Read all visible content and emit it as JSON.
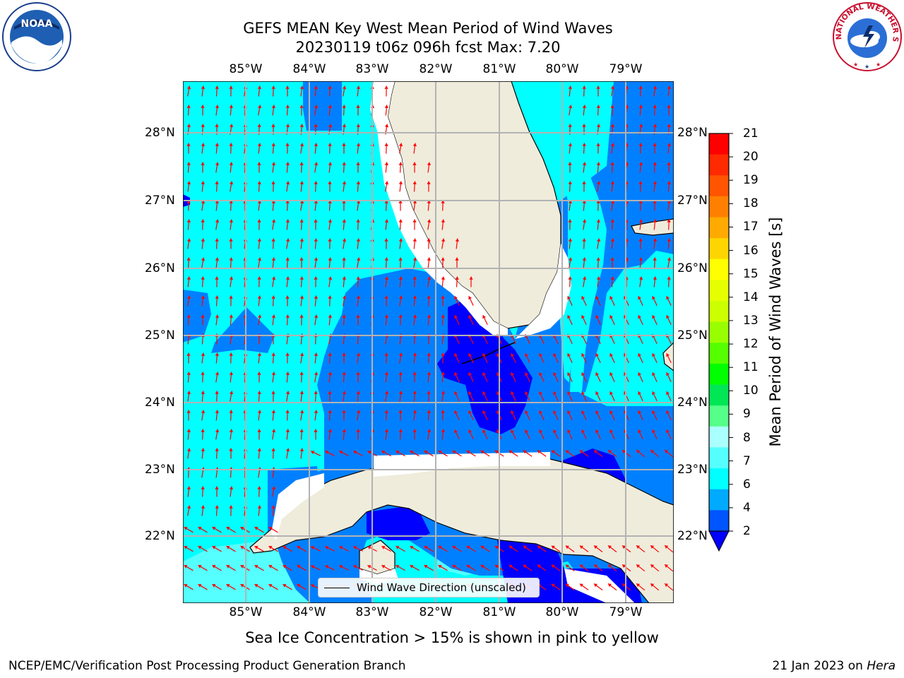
{
  "title": {
    "line1": "GEFS MEAN Key West Mean Period of Wind Waves",
    "line2": "20230119 t06z 096h fcst   Max: 7.20"
  },
  "map": {
    "longitude_labels": [
      "85°W",
      "84°W",
      "83°W",
      "82°W",
      "81°W",
      "80°W",
      "79°W"
    ],
    "latitude_labels": [
      "28°N",
      "27°N",
      "26°N",
      "25°N",
      "24°N",
      "23°N",
      "22°N"
    ],
    "legend_label": "Wind Wave Direction (unscaled)",
    "arrow_color": "#ff0000",
    "land_color": "#efecdc"
  },
  "colorbar": {
    "label": "Mean Period of Wind Waves [s]",
    "ticks": [
      "21",
      "20",
      "19",
      "18",
      "17",
      "16",
      "15",
      "14",
      "13",
      "12",
      "11",
      "10",
      "9",
      "8",
      "7",
      "6",
      "4",
      "2"
    ],
    "colors_top_to_bottom": [
      "#ff0000",
      "#ff2a00",
      "#ff5500",
      "#ff8000",
      "#ffaa00",
      "#ffd500",
      "#ffff00",
      "#e6ff00",
      "#ccff00",
      "#99ff00",
      "#55ff00",
      "#00ff00",
      "#00e655",
      "#55ff88",
      "#aaffff",
      "#55ffff",
      "#00ffff",
      "#00aaff",
      "#0055ff"
    ],
    "extend_color": "#0000ff"
  },
  "footer": {
    "note": "Sea Ice Concentration > 15% is shown in pink to yellow",
    "credit_left": "NCEP/EMC/Verification Post Processing Product Generation Branch",
    "credit_date": "21 Jan 2023 on ",
    "credit_machine": "Hera"
  },
  "logos": {
    "noaa_text": "NOAA",
    "nws_text": "NATIONAL WEATHER SERVICE"
  }
}
